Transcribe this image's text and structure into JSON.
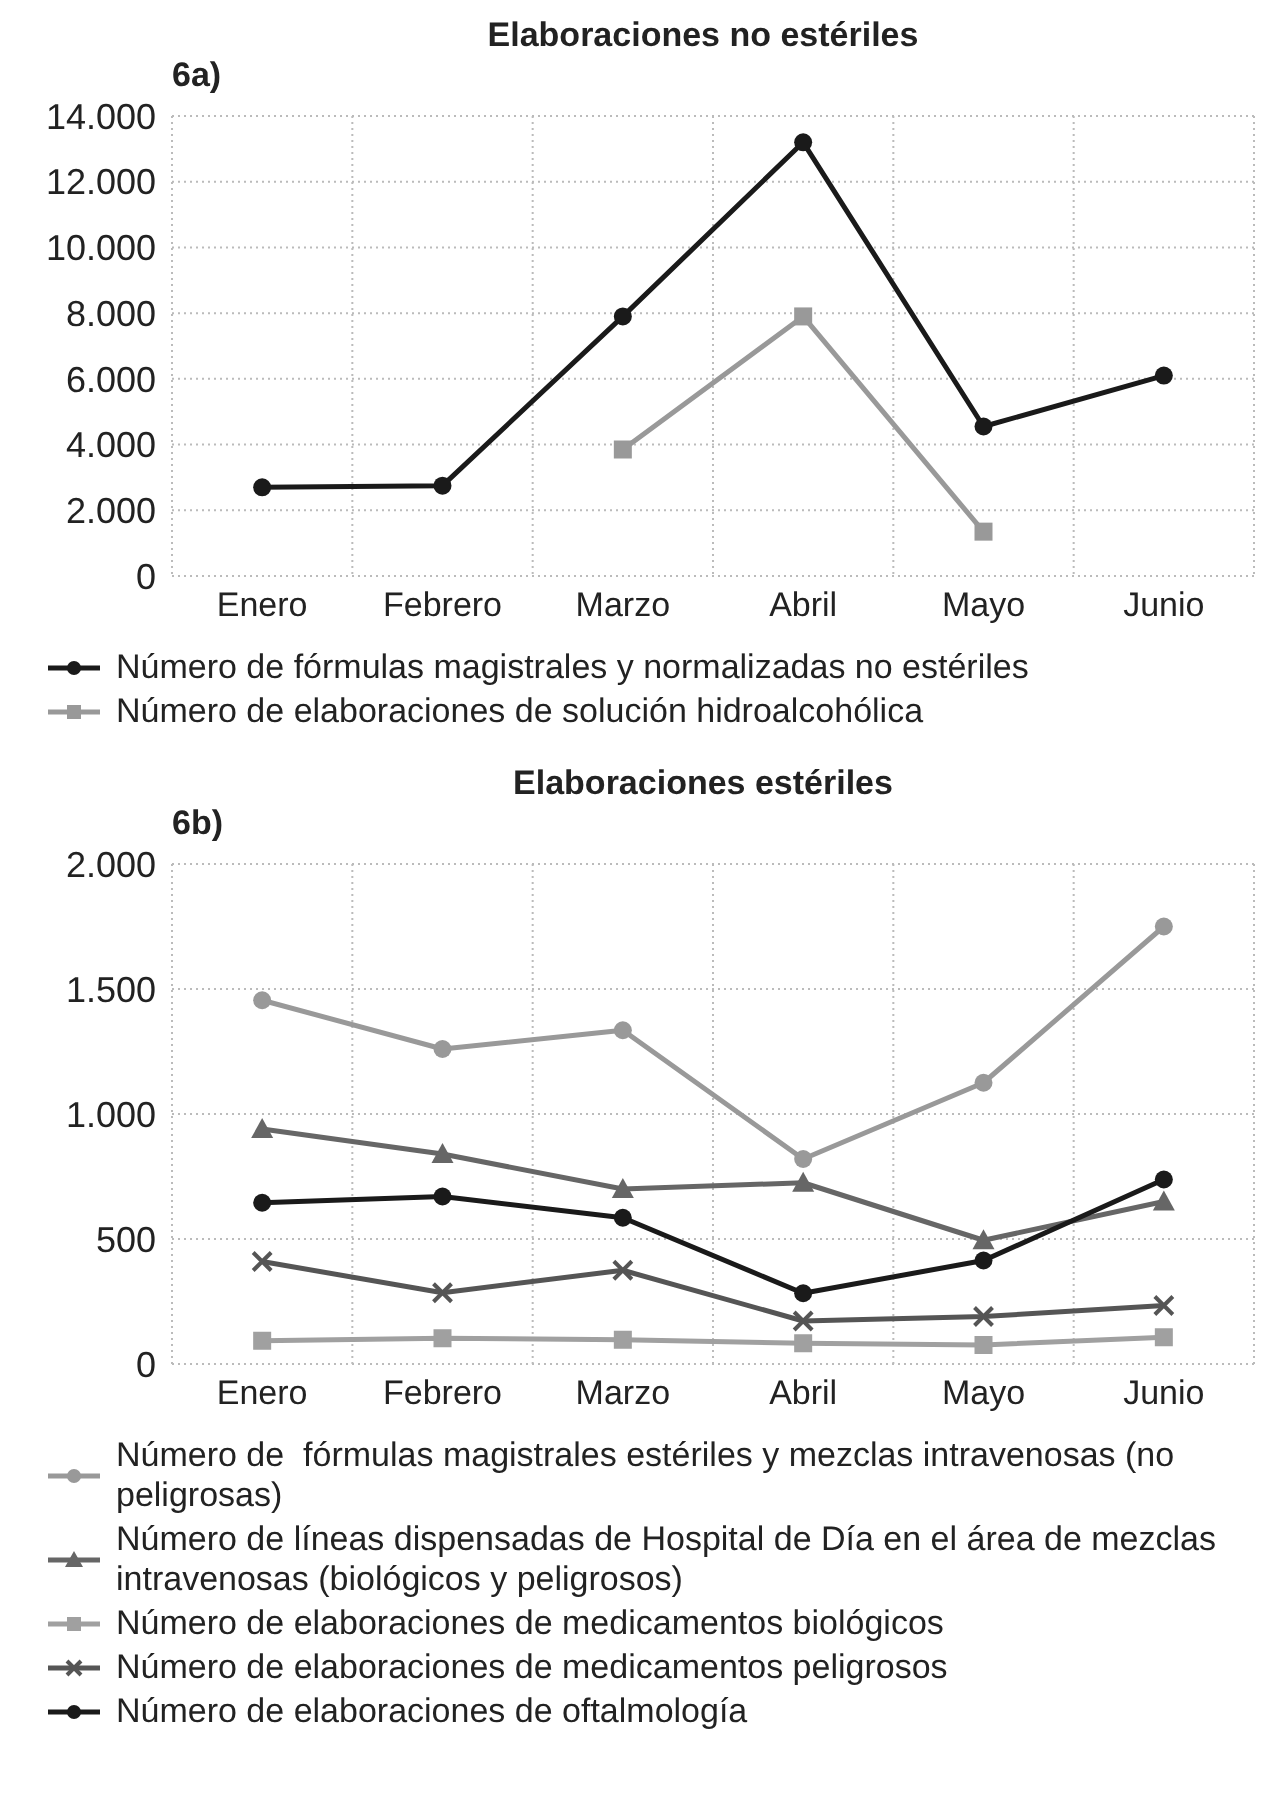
{
  "chart_data": [
    {
      "type": "line",
      "title": "Elaboraciones no estériles",
      "annotations": [
        "6a)"
      ],
      "categories": [
        "Enero",
        "Febrero",
        "Marzo",
        "Abril",
        "Mayo",
        "Junio"
      ],
      "series": [
        {
          "name": "Número de fórmulas magistrales y normalizadas no estériles",
          "color": "#1a1a1a",
          "marker": "circle",
          "values": [
            2700,
            2750,
            7900,
            13200,
            4550,
            6100
          ]
        },
        {
          "name": "Número de elaboraciones de solución hidroalcohólica",
          "color": "#999999",
          "marker": "square",
          "values": [
            null,
            null,
            3850,
            7900,
            1350,
            null
          ]
        }
      ],
      "ylim": [
        0,
        14000
      ],
      "yticks": [
        {
          "value": 0,
          "label": "0"
        },
        {
          "value": 2000,
          "label": "2.000"
        },
        {
          "value": 4000,
          "label": "4.000"
        },
        {
          "value": 6000,
          "label": "6.000"
        },
        {
          "value": 8000,
          "label": "8.000"
        },
        {
          "value": 10000,
          "label": "10.000"
        },
        {
          "value": 12000,
          "label": "12.000"
        },
        {
          "value": 14000,
          "label": "14.000"
        }
      ],
      "grid": true,
      "legend": "bottom",
      "line_style": "solid"
    },
    {
      "type": "line",
      "title": "Elaboraciones estériles",
      "annotations": [
        "6b)"
      ],
      "categories": [
        "Enero",
        "Febrero",
        "Marzo",
        "Abril",
        "Mayo",
        "Junio"
      ],
      "series": [
        {
          "name": "Número de  fórmulas magistrales estériles y mezclas intravenosas (no peligrosas)",
          "color": "#999999",
          "marker": "circle",
          "values": [
            1455,
            1260,
            1335,
            820,
            1125,
            1750
          ]
        },
        {
          "name": "Número de líneas dispensadas de Hospital de Día en el área de mezclas intravenosas (biológicos y peligrosos)",
          "color": "#666666",
          "marker": "triangle",
          "values": [
            940,
            840,
            700,
            725,
            495,
            650
          ]
        },
        {
          "name": "Número de elaboraciones de medicamentos biológicos",
          "color": "#a0a0a0",
          "marker": "square",
          "values": [
            93,
            103,
            97,
            83,
            76,
            107
          ]
        },
        {
          "name": "Número de elaboraciones de medicamentos peligrosos",
          "color": "#555555",
          "marker": "cross",
          "values": [
            410,
            285,
            375,
            172,
            190,
            234
          ]
        },
        {
          "name": "Número de elaboraciones de oftalmología",
          "color": "#1a1a1a",
          "marker": "circle",
          "values": [
            645,
            670,
            585,
            283,
            414,
            738
          ]
        }
      ],
      "ylim": [
        0,
        2000
      ],
      "yticks": [
        {
          "value": 0,
          "label": "0"
        },
        {
          "value": 500,
          "label": "500"
        },
        {
          "value": 1000,
          "label": "1.000"
        },
        {
          "value": 1500,
          "label": "1.500"
        },
        {
          "value": 2000,
          "label": "2.000"
        }
      ],
      "grid": true,
      "legend": "bottom",
      "line_style": "solid"
    }
  ]
}
